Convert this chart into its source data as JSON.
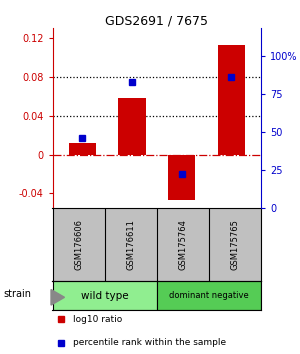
{
  "title": "GDS2691 / 7675",
  "samples": [
    "GSM176606",
    "GSM176611",
    "GSM175764",
    "GSM175765"
  ],
  "log10_ratio": [
    0.012,
    0.058,
    -0.047,
    0.113
  ],
  "percentile_rank": [
    0.46,
    0.83,
    0.22,
    0.86
  ],
  "bar_color": "#cc0000",
  "dot_color": "#0000cc",
  "ylim_left": [
    -0.055,
    0.13
  ],
  "ylim_right": [
    0.0,
    1.18
  ],
  "yticks_left": [
    -0.04,
    0.0,
    0.04,
    0.08,
    0.12
  ],
  "ytick_labels_left": [
    "-0.04",
    "0",
    "0.04",
    "0.08",
    "0.12"
  ],
  "yticks_right": [
    0.0,
    0.25,
    0.5,
    0.75,
    1.0
  ],
  "ytick_labels_right": [
    "0",
    "25",
    "50",
    "75",
    "100%"
  ],
  "hline_y": [
    0.04,
    0.08
  ],
  "zero_line_y": 0.0,
  "groups": [
    {
      "label": "wild type",
      "indices": [
        0,
        1
      ],
      "color": "#90ee90"
    },
    {
      "label": "dominant negative",
      "indices": [
        2,
        3
      ],
      "color": "#55cc55"
    }
  ],
  "strain_label": "strain",
  "legend_items": [
    {
      "color": "#cc0000",
      "label": "log10 ratio"
    },
    {
      "color": "#0000cc",
      "label": "percentile rank within the sample"
    }
  ],
  "bg_color_sample_labels": "#c0c0c0",
  "bar_width": 0.55
}
